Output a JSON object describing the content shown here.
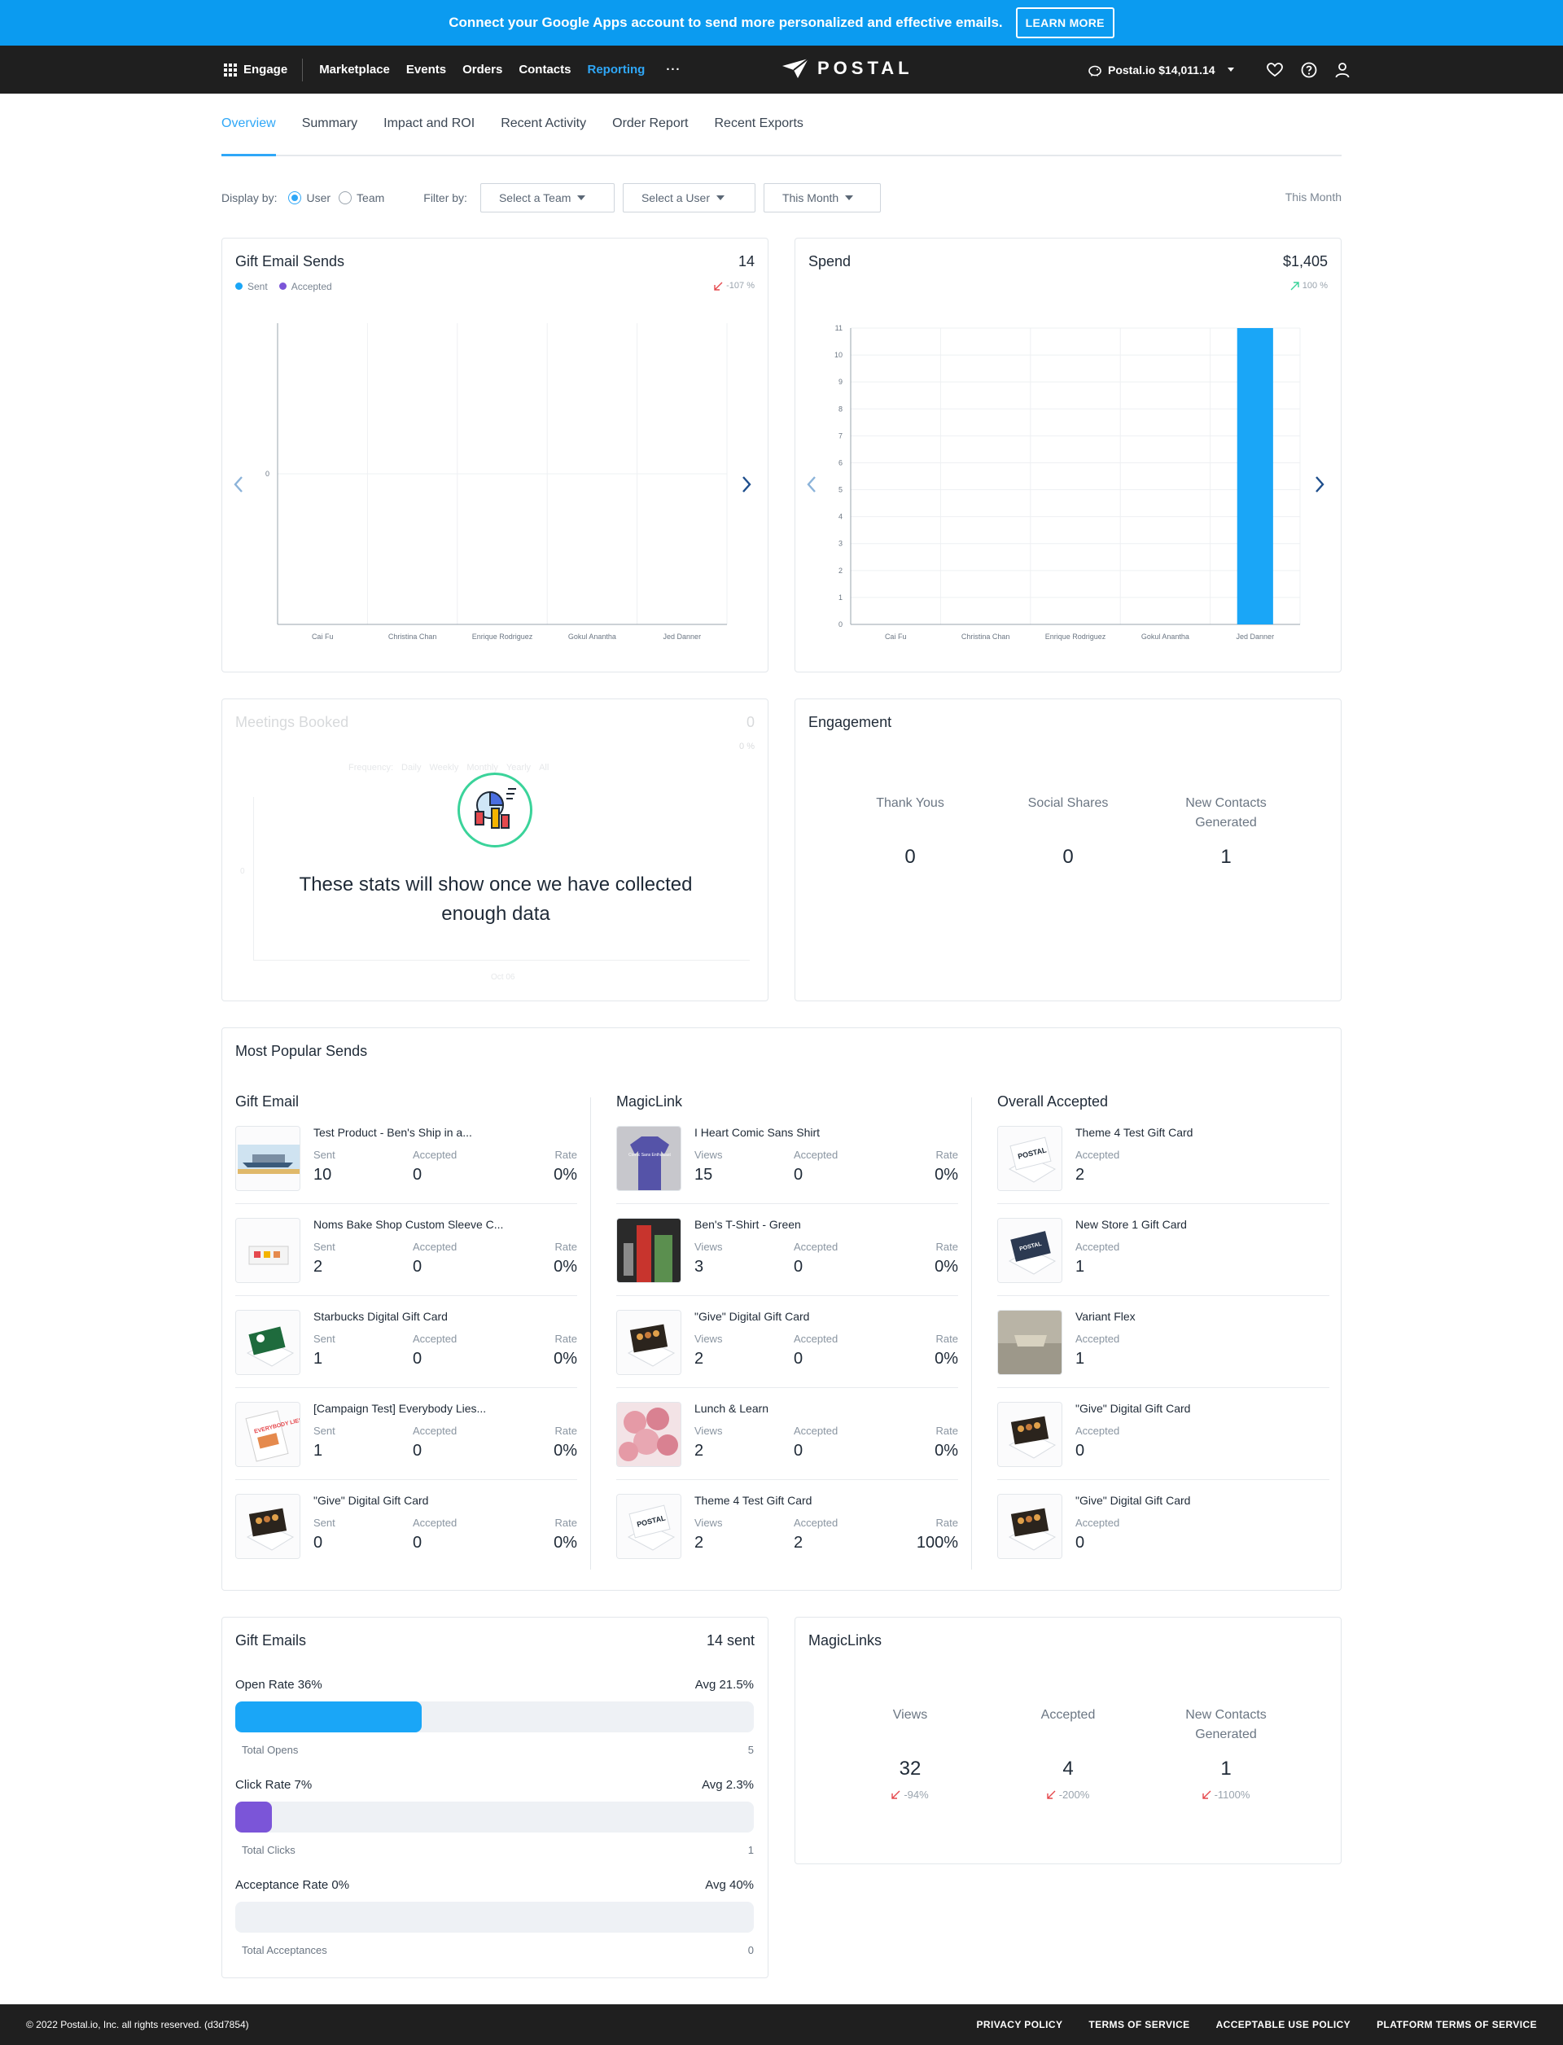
{
  "banner": {
    "text": "Connect your Google Apps account to send more personalized and effective emails.",
    "button": "LEARN MORE"
  },
  "nav": {
    "engage": "Engage",
    "links": [
      "Marketplace",
      "Events",
      "Orders",
      "Contacts",
      "Reporting"
    ],
    "more": "···",
    "logo": "POSTAL",
    "account": "Postal.io $14,011.14"
  },
  "tabs": [
    "Overview",
    "Summary",
    "Impact and ROI",
    "Recent Activity",
    "Order Report",
    "Recent Exports"
  ],
  "filters": {
    "display_by_label": "Display by:",
    "option_user": "User",
    "option_team": "Team",
    "filter_by_label": "Filter by:",
    "team_select": "Select a Team",
    "user_select": "Select a User",
    "period_select": "This Month",
    "period_right": "This Month"
  },
  "gift_email_sends": {
    "title": "Gift Email Sends",
    "value": "14",
    "trend": "-107 %",
    "legend": [
      "Sent",
      "Accepted"
    ],
    "chart_data": {
      "type": "bar",
      "categories": [
        "Cai Fu",
        "Christina Chan",
        "Enrique Rodriguez",
        "Gokul Anantha",
        "Jed Danner"
      ],
      "series": [
        {
          "name": "Sent",
          "values": [
            0,
            0,
            0,
            0,
            0
          ]
        },
        {
          "name": "Accepted",
          "values": [
            0,
            0,
            0,
            0,
            0
          ]
        }
      ],
      "y_ticks": [
        "0"
      ],
      "ylim": [
        0,
        1
      ]
    }
  },
  "spend": {
    "title": "Spend",
    "value": "$1,405",
    "trend": "100 %",
    "chart_data": {
      "type": "bar",
      "categories": [
        "Cai Fu",
        "Christina Chan",
        "Enrique Rodriguez",
        "Gokul Anantha",
        "Jed Danner"
      ],
      "values": [
        0,
        0,
        0,
        0,
        11
      ],
      "y_ticks": [
        "0",
        "1",
        "2",
        "3",
        "4",
        "5",
        "6",
        "7",
        "8",
        "9",
        "10",
        "11"
      ],
      "ylim": [
        0,
        11
      ]
    }
  },
  "meetings": {
    "title": "Meetings Booked",
    "value": "0",
    "trend": "0 %",
    "frequency_label": "Frequency:",
    "frequency_options": [
      "Daily",
      "Weekly",
      "Monthly",
      "Yearly",
      "All"
    ],
    "y_tick": "0",
    "x_tick": "Oct 06",
    "empty_text": "These stats will show once we have collected enough data"
  },
  "engagement": {
    "title": "Engagement",
    "stats": [
      {
        "label": "Thank Yous",
        "value": "0"
      },
      {
        "label": "Social Shares",
        "value": "0"
      },
      {
        "label": "New Contacts Generated",
        "value": "1"
      }
    ]
  },
  "popular": {
    "title": "Most Popular Sends",
    "gift_email": {
      "title": "Gift Email",
      "labels": [
        "Sent",
        "Accepted",
        "Rate"
      ],
      "items": [
        {
          "name": "Test Product - Ben's Ship in a...",
          "a": "10",
          "b": "0",
          "c": "0%"
        },
        {
          "name": "Noms Bake Shop Custom Sleeve C...",
          "a": "2",
          "b": "0",
          "c": "0%"
        },
        {
          "name": "Starbucks Digital Gift Card",
          "a": "1",
          "b": "0",
          "c": "0%"
        },
        {
          "name": "[Campaign Test] Everybody Lies...",
          "a": "1",
          "b": "0",
          "c": "0%"
        },
        {
          "name": "\"Give\" Digital Gift Card",
          "a": "0",
          "b": "0",
          "c": "0%"
        }
      ]
    },
    "magiclink": {
      "title": "MagicLink",
      "labels": [
        "Views",
        "Accepted",
        "Rate"
      ],
      "items": [
        {
          "name": "I Heart Comic Sans Shirt",
          "a": "15",
          "b": "0",
          "c": "0%"
        },
        {
          "name": "Ben's T-Shirt - Green",
          "a": "3",
          "b": "0",
          "c": "0%"
        },
        {
          "name": "\"Give\" Digital Gift Card",
          "a": "2",
          "b": "0",
          "c": "0%"
        },
        {
          "name": "Lunch & Learn",
          "a": "2",
          "b": "0",
          "c": "0%"
        },
        {
          "name": "Theme 4 Test Gift Card",
          "a": "2",
          "b": "2",
          "c": "100%"
        }
      ]
    },
    "overall": {
      "title": "Overall Accepted",
      "label": "Accepted",
      "items": [
        {
          "name": "Theme 4 Test Gift Card",
          "a": "2"
        },
        {
          "name": "New Store 1 Gift Card",
          "a": "1"
        },
        {
          "name": "Variant Flex",
          "a": "1"
        },
        {
          "name": "\"Give\" Digital Gift Card",
          "a": "0"
        },
        {
          "name": "\"Give\" Digital Gift Card",
          "a": "0"
        }
      ]
    },
    "thumb_text": {
      "postal": "POSTAL",
      "shirt": "Comic Sans Enthusiast",
      "book": "EVERYBODY LIES"
    }
  },
  "gift_emails": {
    "title": "Gift Emails",
    "value": "14 sent",
    "rows": [
      {
        "label": "Open Rate 36%",
        "avg": "Avg 21.5%",
        "foot_label": "Total Opens",
        "foot_value": "5",
        "fill": 0.36,
        "color": "#1aa6f7"
      },
      {
        "label": "Click Rate 7%",
        "avg": "Avg 2.3%",
        "foot_label": "Total Clicks",
        "foot_value": "1",
        "fill": 0.07,
        "color": "#7b55d8"
      },
      {
        "label": "Acceptance Rate 0%",
        "avg": "Avg 40%",
        "foot_label": "Total Acceptances",
        "foot_value": "0",
        "fill": 0,
        "color": "#1aa6f7"
      }
    ]
  },
  "magiclinks": {
    "title": "MagicLinks",
    "stats": [
      {
        "label": "Views",
        "value": "32",
        "trend": "-94%"
      },
      {
        "label": "Accepted",
        "value": "4",
        "trend": "-200%"
      },
      {
        "label": "New Contacts Generated",
        "value": "1",
        "trend": "-1100%"
      }
    ]
  },
  "footer": {
    "copyright": "© 2022 Postal.io, Inc. all rights reserved.  (d3d7854)",
    "links": [
      "PRIVACY POLICY",
      "TERMS OF SERVICE",
      "ACCEPTABLE USE POLICY",
      "PLATFORM TERMS OF SERVICE"
    ]
  },
  "colors": {
    "accent": "#2fa7f7",
    "sent": "#1aa6f7",
    "accepted": "#7b55d8",
    "down": "#e5484d",
    "up": "#3ad39a"
  }
}
